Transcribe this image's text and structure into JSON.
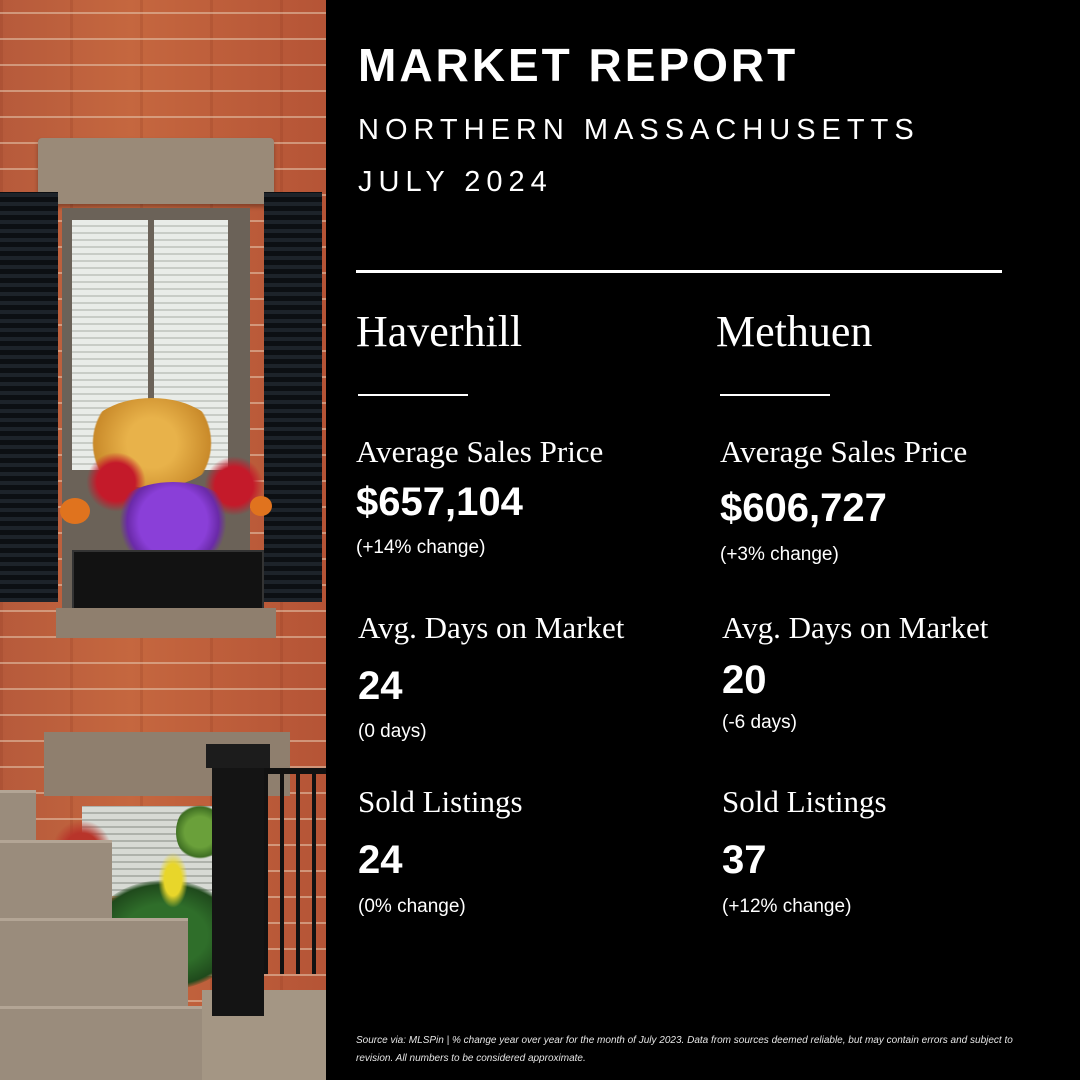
{
  "header": {
    "title": "MARKET REPORT",
    "region": "NORTHERN MASSACHUSETTS",
    "period": "JULY 2024"
  },
  "cities": [
    {
      "name": "Haverhill",
      "avg_price_label": "Average Sales Price",
      "avg_price": "$657,104",
      "avg_price_change": "(+14% change)",
      "dom_label": "Avg. Days on Market",
      "dom": "24",
      "dom_change": "(0 days)",
      "sold_label": "Sold Listings",
      "sold": "24",
      "sold_change": "(0% change)"
    },
    {
      "name": "Methuen",
      "avg_price_label": "Average Sales Price",
      "avg_price": "$606,727",
      "avg_price_change": "(+3% change)",
      "dom_label": "Avg. Days on Market",
      "dom": "20",
      "dom_change": "(-6 days)",
      "sold_label": "Sold Listings",
      "sold": "37",
      "sold_change": "(+12% change)"
    }
  ],
  "footer": "Source via: MLSPin | % change year over year for the month of July 2023. Data from sources deemed reliable, but may contain errors and subject to revision. All numbers to be considered approximate."
}
